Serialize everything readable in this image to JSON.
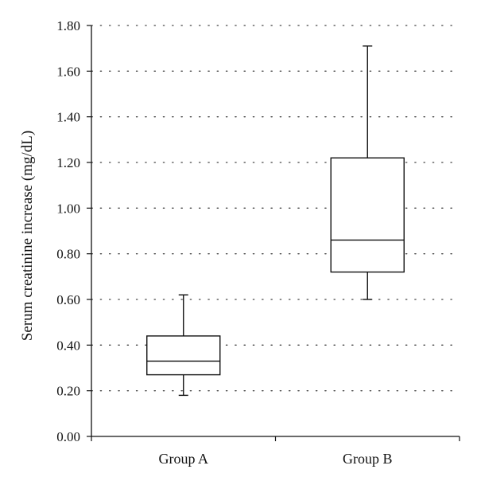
{
  "chart_data": {
    "type": "box",
    "title": "",
    "xlabel": "",
    "ylabel": "Serum creatinine increase (mg/dL)",
    "ylim": [
      0,
      1.8
    ],
    "yticks": [
      "0.00",
      "0.20",
      "0.40",
      "0.60",
      "0.80",
      "1.00",
      "1.20",
      "1.40",
      "1.60",
      "1.80"
    ],
    "grid": "dotted horizontal",
    "legend": "none",
    "categories": [
      "Group A",
      "Group B"
    ],
    "boxes": [
      {
        "category": "Group A",
        "min": 0.18,
        "q1": 0.27,
        "median": 0.33,
        "q3": 0.44,
        "max": 0.62
      },
      {
        "category": "Group B",
        "min": 0.6,
        "q1": 0.72,
        "median": 0.86,
        "q3": 1.22,
        "max": 1.71
      }
    ]
  }
}
